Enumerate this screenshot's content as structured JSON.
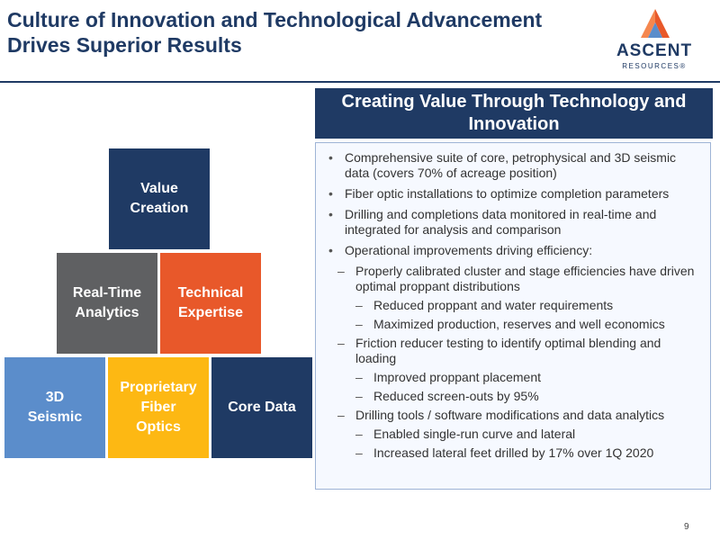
{
  "slide": {
    "title": "Culture of Innovation and Technological Advancement Drives Superior Results",
    "page_number": "9"
  },
  "logo": {
    "wordmark": "ASCENT",
    "subtext": "RESOURCES®",
    "colors": {
      "orange": "#e8582a",
      "light_blue": "#5b8dcb",
      "navy": "#1f3a64"
    }
  },
  "panel": {
    "heading": "Creating Value Through Technology and Innovation",
    "bullets": [
      {
        "level": 0,
        "marker": "•",
        "text": "Comprehensive suite of core, petrophysical and 3D seismic data (covers 70% of acreage position)"
      },
      {
        "level": 0,
        "marker": "•",
        "text": "Fiber optic installations to optimize completion parameters"
      },
      {
        "level": 0,
        "marker": "•",
        "text": "Drilling and completions data monitored in real-time and integrated for analysis and comparison"
      },
      {
        "level": 0,
        "marker": "•",
        "text": "Operational improvements driving efficiency:"
      },
      {
        "level": 1,
        "marker": "–",
        "text": "Properly calibrated cluster and stage efficiencies have driven optimal proppant distributions"
      },
      {
        "level": 2,
        "marker": "–",
        "text": "Reduced proppant and water requirements"
      },
      {
        "level": 2,
        "marker": "–",
        "text": "Maximized production, reserves and well economics"
      },
      {
        "level": 1,
        "marker": "–",
        "text": "Friction reducer testing to identify optimal blending and loading"
      },
      {
        "level": 2,
        "marker": "–",
        "text": "Improved proppant placement"
      },
      {
        "level": 2,
        "marker": "–",
        "text": "Reduced screen-outs by 95%"
      },
      {
        "level": 1,
        "marker": "–",
        "text": "Drilling tools / software modifications and data analytics"
      },
      {
        "level": 2,
        "marker": "–",
        "text": "Enabled single-run curve and lateral"
      },
      {
        "level": 2,
        "marker": "–",
        "text": "Increased lateral feet drilled by 17% over 1Q 2020"
      }
    ]
  },
  "pyramid": {
    "value_creation": {
      "label": "Value\nCreation",
      "color": "#1f3a64"
    },
    "real_time_analytics": {
      "label": "Real-Time\nAnalytics",
      "color": "#5f6062"
    },
    "technical_expertise": {
      "label": "Technical\nExpertise",
      "color": "#e8582a"
    },
    "seismic_3d": {
      "label": "3D\nSeismic",
      "color": "#5b8dcb"
    },
    "proprietary_fiber_optics": {
      "label": "Proprietary\nFiber\nOptics",
      "color": "#fdb813"
    },
    "core_data": {
      "label": "Core Data",
      "color": "#1f3a64"
    }
  }
}
